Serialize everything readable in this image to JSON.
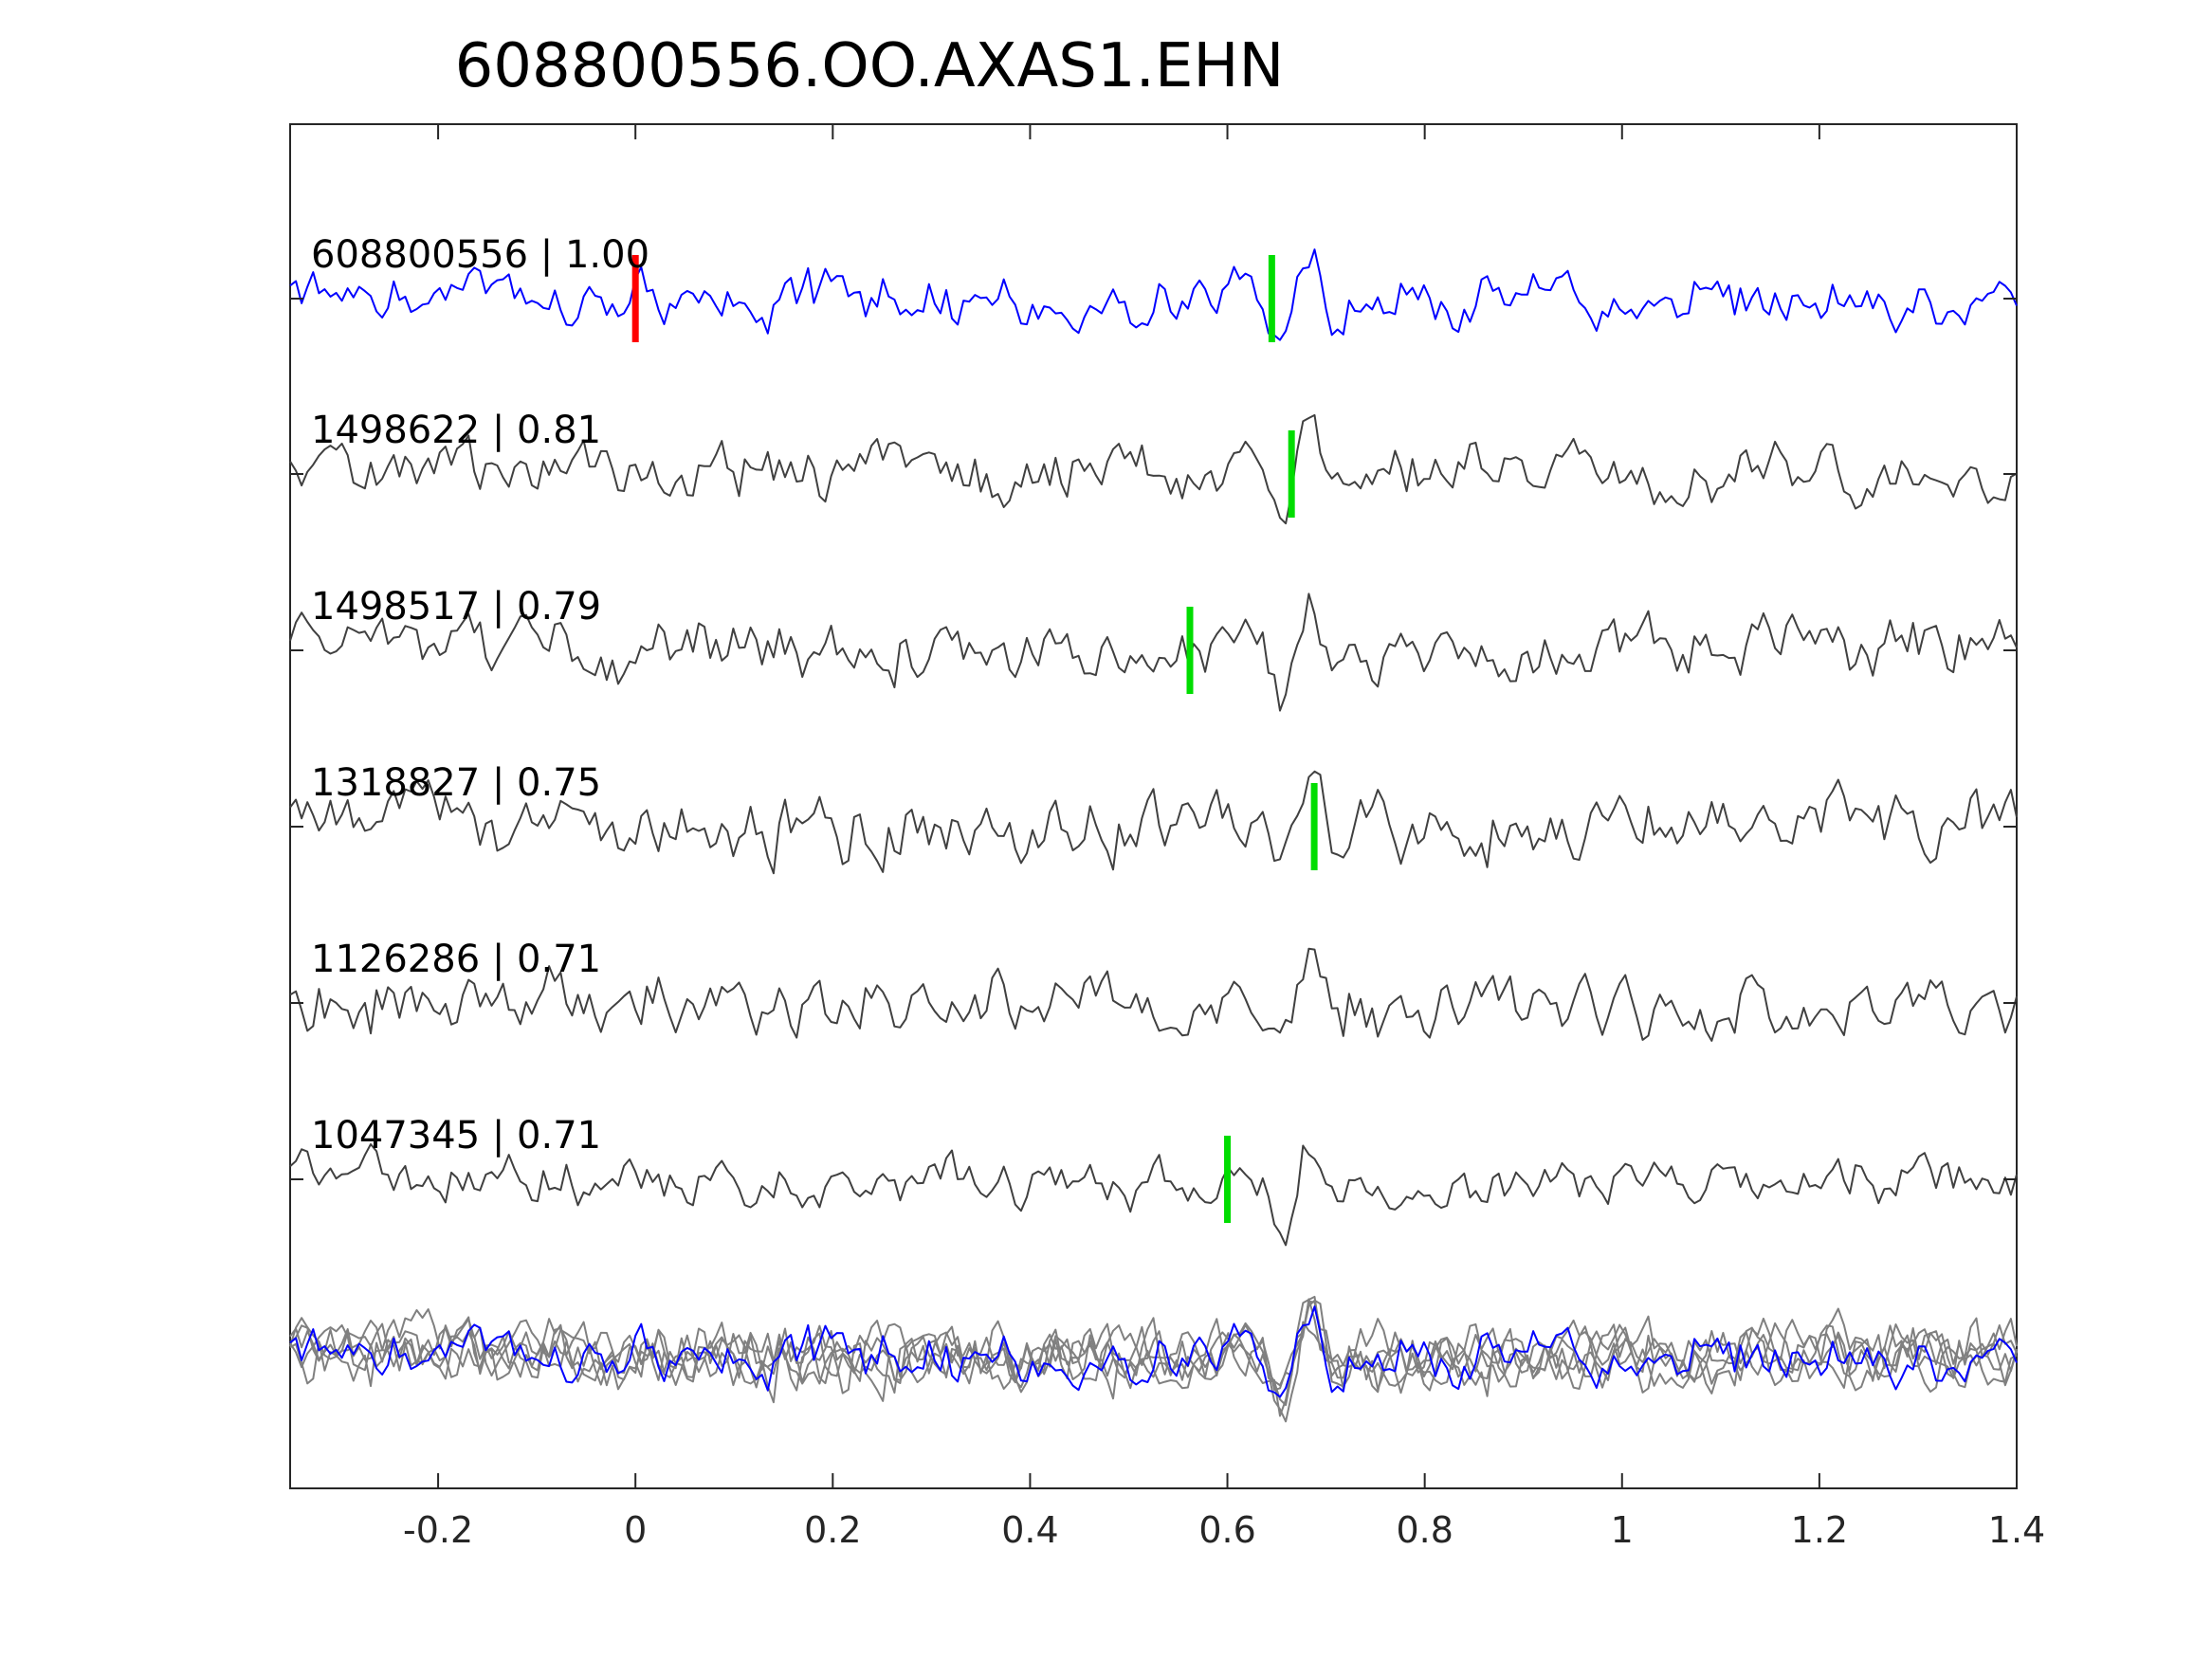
{
  "chart_data": {
    "type": "line",
    "title": "608800556.OO.AXAS1.EHN",
    "xlabel": "",
    "ylabel": "",
    "xlim": [
      -0.35,
      1.4
    ],
    "xticks": [
      -0.2,
      0,
      0.2,
      0.4,
      0.6,
      0.8,
      1,
      1.2,
      1.4
    ],
    "xtick_labels": [
      "-0.2",
      "0",
      "0.2",
      "0.4",
      "0.6",
      "0.8",
      "1",
      "1.2",
      "1.4"
    ],
    "grid": false,
    "traces": [
      {
        "label": "608800556 | 1.00",
        "color": "#0000ff",
        "red_pick": 0.0,
        "green_pick": 0.645
      },
      {
        "label": "1498622 | 0.81",
        "color": "#404040",
        "green_pick": 0.665
      },
      {
        "label": "1498517 | 0.79",
        "color": "#404040",
        "green_pick": 0.562
      },
      {
        "label": "1318827 | 0.75",
        "color": "#404040",
        "green_pick": 0.688
      },
      {
        "label": "1126286 | 0.71",
        "color": "#404040",
        "green_pick": null
      },
      {
        "label": "1047345 | 0.71",
        "color": "#404040",
        "green_pick": 0.6
      }
    ],
    "overlay": {
      "description_color_main": "#0000ff",
      "color_others": "#808080"
    },
    "colors": {
      "red_pick": "#ff0000",
      "green_pick": "#00dd00",
      "axes": "#262626"
    }
  }
}
